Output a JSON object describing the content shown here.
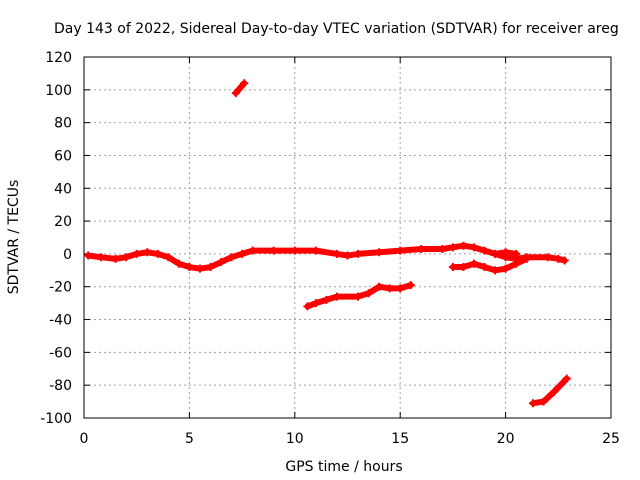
{
  "chart_data": {
    "type": "scatter",
    "title": "Day 143 of 2022, Sidereal Day-to-day VTEC variation (SDTVAR) for receiver areg",
    "xlabel": "GPS time / hours",
    "ylabel": "SDTVAR / TECUs",
    "xlim": [
      0,
      25
    ],
    "ylim": [
      -100,
      120
    ],
    "xticks": [
      0,
      5,
      10,
      15,
      20,
      25
    ],
    "yticks": [
      -100,
      -80,
      -60,
      -40,
      -20,
      0,
      20,
      40,
      60,
      80,
      100,
      120
    ],
    "grid": true,
    "marker": "plus",
    "series_color": "#ff0000",
    "series": [
      {
        "name": "main-track",
        "x": [
          0.2,
          0.8,
          1.5,
          2.0,
          2.5,
          3.0,
          3.5,
          4.0,
          4.5,
          5.0,
          5.5,
          6.0,
          6.5,
          7.0,
          7.5,
          8.0,
          9.0,
          10.0,
          11.0,
          12.0,
          12.5,
          13.0,
          14.0,
          15.0,
          16.0,
          17.0,
          17.5,
          18.0,
          18.5,
          19.0,
          19.5,
          20.0,
          20.5,
          21.0,
          22.0,
          22.5,
          22.8
        ],
        "y": [
          -1,
          -2,
          -3,
          -2,
          0,
          1,
          0,
          -2,
          -6,
          -8,
          -9,
          -8,
          -5,
          -2,
          0,
          2,
          2,
          2,
          2,
          0,
          -1,
          0,
          1,
          2,
          3,
          3,
          4,
          5,
          4,
          2,
          0,
          -2,
          -3,
          -2,
          -2,
          -3,
          -4
        ]
      },
      {
        "name": "lower-branch",
        "x": [
          17.5,
          18.0,
          18.5,
          19.0,
          19.5,
          20.0,
          20.5,
          21.0
        ],
        "y": [
          -8,
          -8,
          -6,
          -8,
          -10,
          -9,
          -6,
          -3
        ]
      },
      {
        "name": "upper-branch",
        "x": [
          19.5,
          20.0,
          20.5
        ],
        "y": [
          0,
          1,
          0
        ]
      },
      {
        "name": "mid-arc",
        "x": [
          10.6,
          11.0,
          11.5,
          12.0,
          13.0,
          13.5,
          14.0,
          14.5,
          15.0,
          15.5
        ],
        "y": [
          -32,
          -30,
          -28,
          -26,
          -26,
          -24,
          -20,
          -21,
          -21,
          -19
        ]
      },
      {
        "name": "spike-top",
        "x": [
          7.2,
          7.6
        ],
        "y": [
          98,
          104
        ]
      },
      {
        "name": "bottom-arc",
        "x": [
          21.3,
          21.8,
          22.3,
          22.9
        ],
        "y": [
          -91,
          -90,
          -84,
          -76
        ]
      }
    ]
  }
}
